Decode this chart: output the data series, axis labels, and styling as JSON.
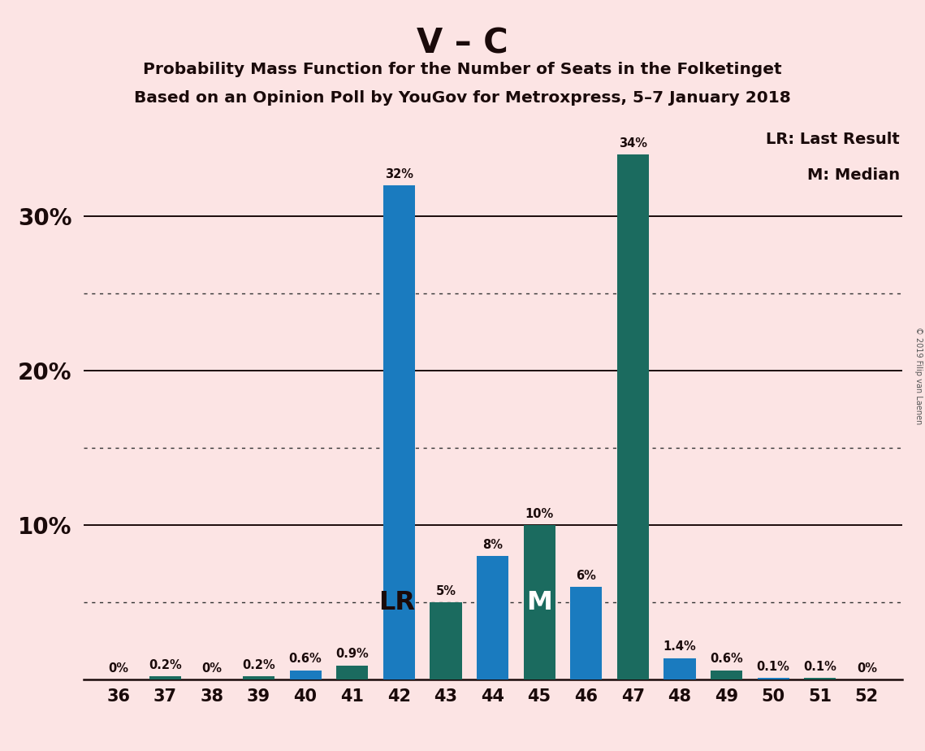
{
  "title": "V – C",
  "subtitle1": "Probability Mass Function for the Number of Seats in the Folketinget",
  "subtitle2": "Based on an Opinion Poll by YouGov for Metroxpress, 5–7 January 2018",
  "copyright": "© 2019 Filip van Laenen",
  "categories": [
    36,
    37,
    38,
    39,
    40,
    41,
    42,
    43,
    44,
    45,
    46,
    47,
    48,
    49,
    50,
    51,
    52
  ],
  "values": [
    0.0,
    0.2,
    0.0,
    0.2,
    0.6,
    0.9,
    32.0,
    5.0,
    8.0,
    10.0,
    6.0,
    34.0,
    1.4,
    0.6,
    0.1,
    0.1,
    0.0
  ],
  "bar_colors": [
    "#1a7bbf",
    "#1b6b5f",
    "#1a7bbf",
    "#1b6b5f",
    "#1a7bbf",
    "#1b6b5f",
    "#1a7bbf",
    "#1b6b5f",
    "#1a7bbf",
    "#1b6b5f",
    "#1a7bbf",
    "#1b6b5f",
    "#1a7bbf",
    "#1b6b5f",
    "#1a7bbf",
    "#1b6b5f",
    "#1a7bbf"
  ],
  "label_texts": [
    "0%",
    "0.2%",
    "0%",
    "0.2%",
    "0.6%",
    "0.9%",
    "32%",
    "5%",
    "8%",
    "10%",
    "6%",
    "34%",
    "1.4%",
    "0.6%",
    "0.1%",
    "0.1%",
    "0%"
  ],
  "lr_seat": 42,
  "median_seat": 45,
  "background_color": "#fce4e4",
  "legend_lr": "LR: Last Result",
  "legend_m": "M: Median",
  "grid_solid": [
    10,
    20,
    30
  ],
  "grid_dotted": [
    5,
    15,
    25
  ],
  "ytick_show": [
    10,
    20,
    30
  ],
  "ylim_max": 36
}
